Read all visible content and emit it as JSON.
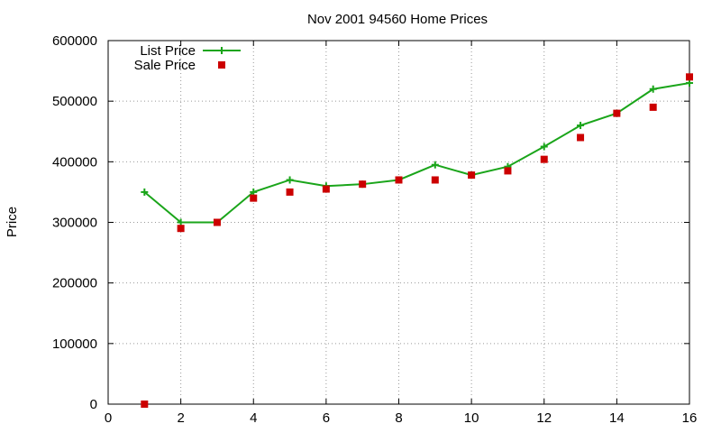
{
  "chart_data": {
    "type": "line",
    "title": "Nov 2001 94560 Home Prices",
    "xlabel": "",
    "ylabel": "Price",
    "xlim": [
      0,
      16
    ],
    "ylim": [
      0,
      600000
    ],
    "xticks": [
      "0",
      "2",
      "4",
      "6",
      "8",
      "10",
      "12",
      "14",
      "16"
    ],
    "yticks": [
      "0",
      "100000",
      "200000",
      "300000",
      "400000",
      "500000",
      "600000"
    ],
    "grid": true,
    "legend_position": "top-left",
    "series": [
      {
        "name": "List Price",
        "style": "line-with-plus-markers",
        "color": "#1aa51a",
        "x": [
          1,
          2,
          3,
          4,
          5,
          6,
          7,
          8,
          9,
          10,
          11,
          12,
          13,
          14,
          15,
          16
        ],
        "y": [
          350000,
          300000,
          300000,
          350000,
          370000,
          360000,
          363000,
          370000,
          395000,
          378000,
          392000,
          425000,
          460000,
          480000,
          520000,
          530000
        ]
      },
      {
        "name": "Sale Price",
        "style": "square-markers",
        "color": "#cc0000",
        "x": [
          1,
          2,
          3,
          4,
          5,
          6,
          7,
          8,
          9,
          10,
          11,
          12,
          13,
          14,
          15,
          16
        ],
        "y": [
          0,
          290000,
          300000,
          340000,
          350000,
          355000,
          363000,
          370000,
          370000,
          378000,
          385000,
          404000,
          440000,
          480000,
          490000,
          540000
        ]
      }
    ]
  }
}
